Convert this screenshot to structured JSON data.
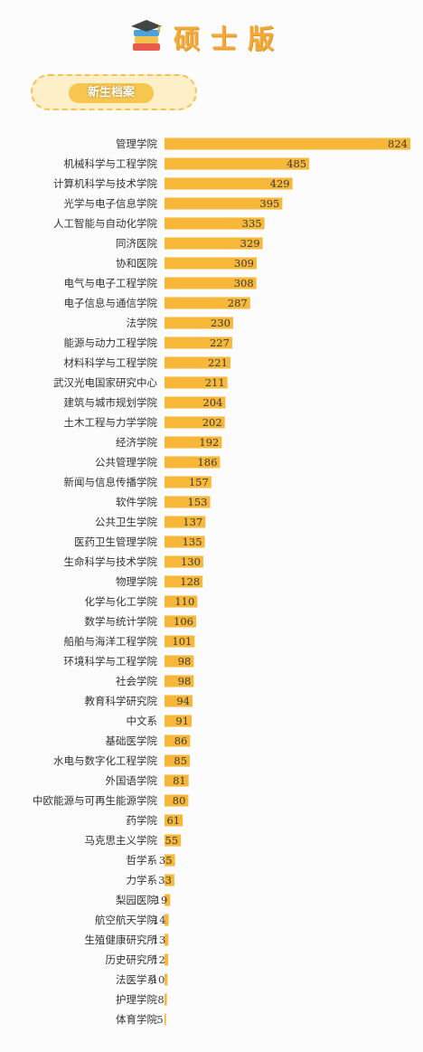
{
  "header": {
    "title": "硕士版",
    "badge": "新生档案",
    "icon": "books-graduation-cap-icon"
  },
  "colors": {
    "bar": "#f7b83a",
    "title": "#f2aa3a",
    "badge_fill": "#fdf0c8",
    "badge_border": "#f5c25a"
  },
  "chart_data": {
    "type": "bar",
    "orientation": "horizontal",
    "categories": [
      "管理学院",
      "机械科学与工程学院",
      "计算机科学与技术学院",
      "光学与电子信息学院",
      "人工智能与自动化学院",
      "同济医院",
      "协和医院",
      "电气与电子工程学院",
      "电子信息与通信学院",
      "法学院",
      "能源与动力工程学院",
      "材料科学与工程学院",
      "武汉光电国家研究中心",
      "建筑与城市规划学院",
      "土木工程与力学学院",
      "经济学院",
      "公共管理学院",
      "新闻与信息传播学院",
      "软件学院",
      "公共卫生学院",
      "医药卫生管理学院",
      "生命科学与技术学院",
      "物理学院",
      "化学与化工学院",
      "数学与统计学院",
      "船舶与海洋工程学院",
      "环境科学与工程学院",
      "社会学院",
      "教育科学研究院",
      "中文系",
      "基础医学院",
      "水电与数字化工程学院",
      "外国语学院",
      "中欧能源与可再生能源学院",
      "药学院",
      "马克思主义学院",
      "哲学系",
      "力学系",
      "梨园医院",
      "航空航天学院",
      "生殖健康研究所",
      "历史研究所",
      "法医学系",
      "护理学院",
      "体育学院"
    ],
    "values": [
      824,
      485,
      429,
      395,
      335,
      329,
      309,
      308,
      287,
      230,
      227,
      221,
      211,
      204,
      202,
      192,
      186,
      157,
      153,
      137,
      135,
      130,
      128,
      110,
      106,
      101,
      98,
      98,
      94,
      91,
      86,
      85,
      81,
      80,
      61,
      55,
      35,
      33,
      19,
      14,
      13,
      12,
      10,
      8,
      5
    ],
    "xlim": [
      0,
      824
    ],
    "grid": false,
    "legend": "none"
  }
}
